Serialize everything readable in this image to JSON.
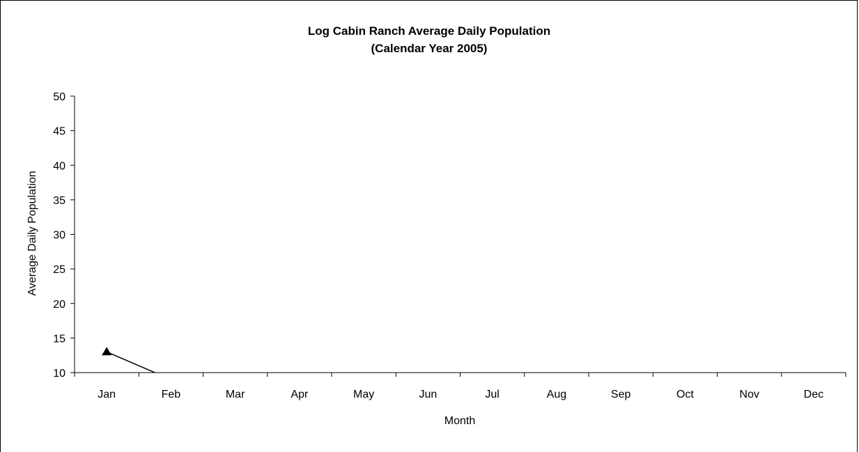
{
  "chart_data": {
    "type": "line",
    "title": "Log Cabin Ranch Average Daily Population",
    "subtitle": "(Calendar Year 2005)",
    "xlabel": "Month",
    "ylabel": "Average Daily Population",
    "categories": [
      "Jan",
      "Feb",
      "Mar",
      "Apr",
      "May",
      "Jun",
      "Jul",
      "Aug",
      "Sep",
      "Oct",
      "Nov",
      "Dec"
    ],
    "ylim": [
      10,
      50
    ],
    "yticks": [
      "10",
      "15",
      "20",
      "25",
      "30",
      "35",
      "40",
      "45",
      "50"
    ],
    "grid": false,
    "series": [
      {
        "marker": "triangle",
        "color": "#000000",
        "values": [
          13,
          9,
          null,
          null,
          null,
          null,
          null,
          null,
          null,
          null,
          null,
          null
        ]
      }
    ]
  }
}
